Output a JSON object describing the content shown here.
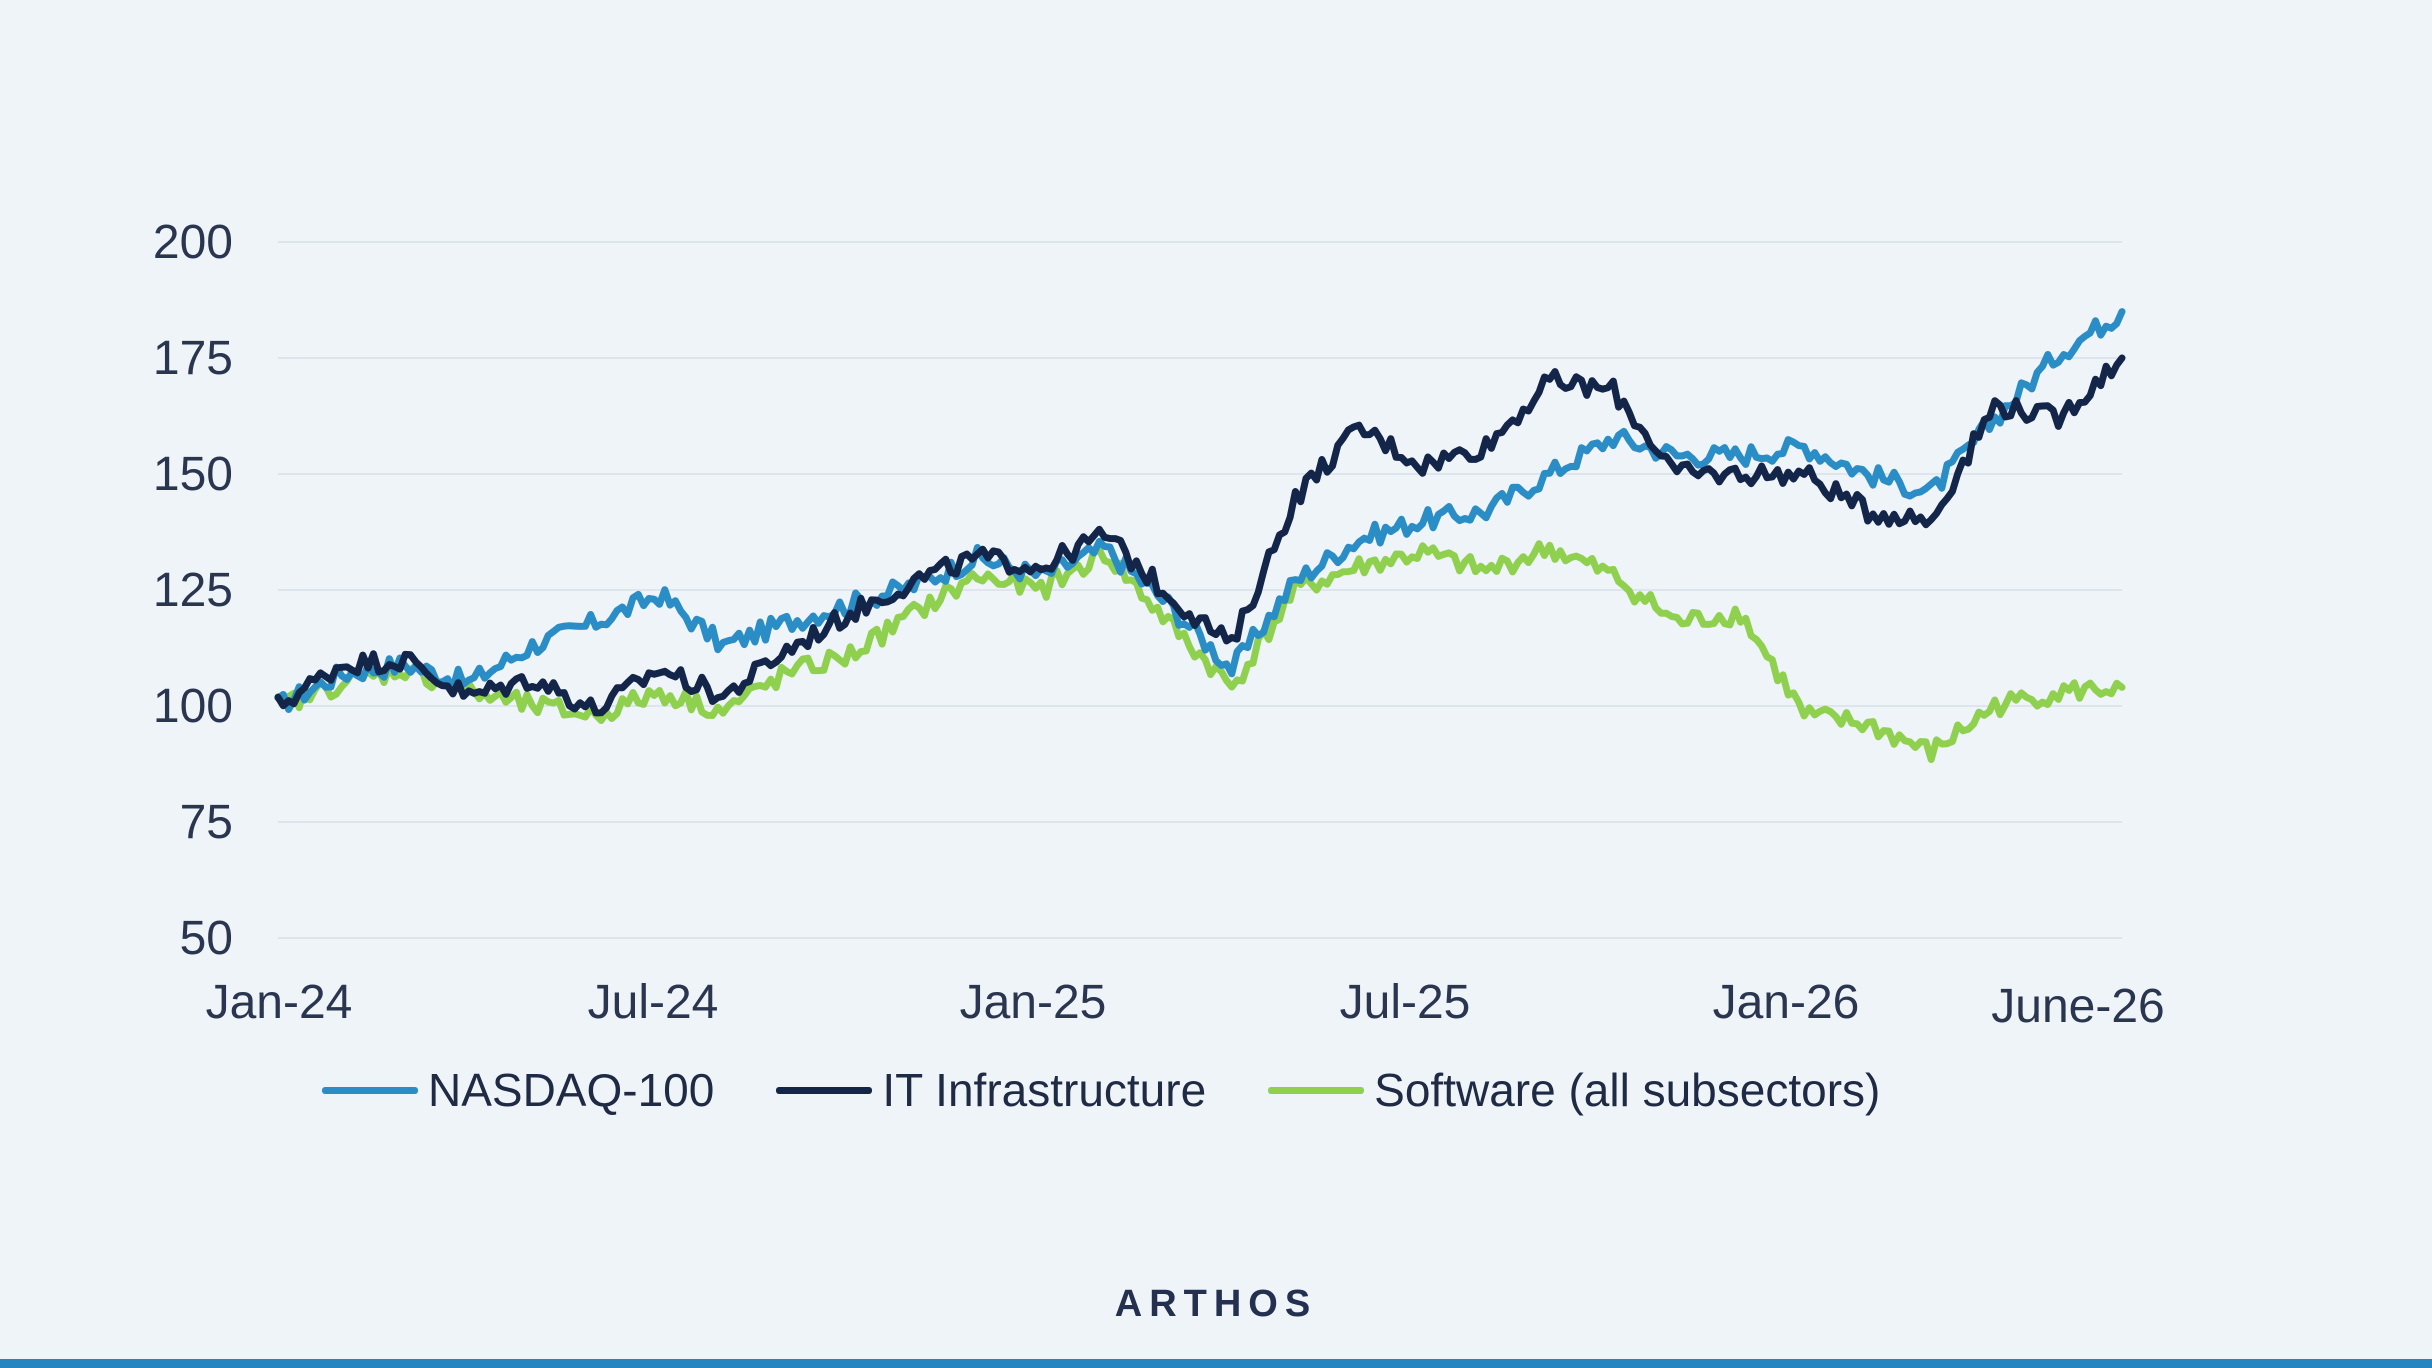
{
  "colors": {
    "background": "#eff4f8",
    "nasdaq": "#2a8dc6",
    "it_infrastructure": "#14254a",
    "software": "#8fd14f",
    "footer_bar": "#2485c1"
  },
  "brand": "ARTHOS",
  "chart_data": {
    "type": "line",
    "ylim": [
      50,
      200
    ],
    "y_ticks": [
      "50",
      "75",
      "100",
      "125",
      "150",
      "175",
      "200"
    ],
    "x_ticks": [
      "Jan-24",
      "Jul-24",
      "Jan-25",
      "Jul-25",
      "Jan-26",
      "June-26"
    ],
    "grid": true,
    "legend_position": "bottom",
    "x": [
      "2024-01",
      "2024-02",
      "2024-03",
      "2024-04",
      "2024-05",
      "2024-06",
      "2024-07",
      "2024-08",
      "2024-09",
      "2024-10",
      "2024-11",
      "2024-12",
      "2025-01",
      "2025-02",
      "2025-03",
      "2025-04",
      "2025-05",
      "2025-06",
      "2025-07",
      "2025-08",
      "2025-09",
      "2025-10",
      "2025-11",
      "2025-12",
      "2026-01",
      "2026-02",
      "2026-03",
      "2026-04",
      "2026-05",
      "2026-06"
    ],
    "series": [
      {
        "name": "NASDAQ-100",
        "color_key": "nasdaq",
        "values": [
          100,
          107,
          109,
          105,
          113,
          118,
          124,
          113,
          118,
          122,
          126,
          132,
          128,
          134,
          122,
          108,
          127,
          136,
          140,
          142,
          150,
          158,
          154,
          154,
          156,
          150,
          146,
          162,
          176,
          185
        ]
      },
      {
        "name": "IT Infrastructure",
        "color_key": "it_infrastructure",
        "values": [
          100,
          109,
          110,
          102,
          106,
          99,
          108,
          102,
          112,
          120,
          127,
          132,
          130,
          137,
          124,
          113,
          145,
          160,
          152,
          156,
          170,
          168,
          150,
          150,
          150,
          142,
          140,
          165,
          162,
          175
        ]
      },
      {
        "name": "Software (all subsectors)",
        "color_key": "software",
        "values": [
          100,
          105,
          108,
          103,
          100,
          98,
          103,
          99,
          107,
          111,
          120,
          128,
          125,
          133,
          118,
          104,
          125,
          130,
          133,
          129,
          134,
          128,
          118,
          120,
          98,
          96,
          90,
          100,
          103,
          104
        ]
      }
    ]
  }
}
